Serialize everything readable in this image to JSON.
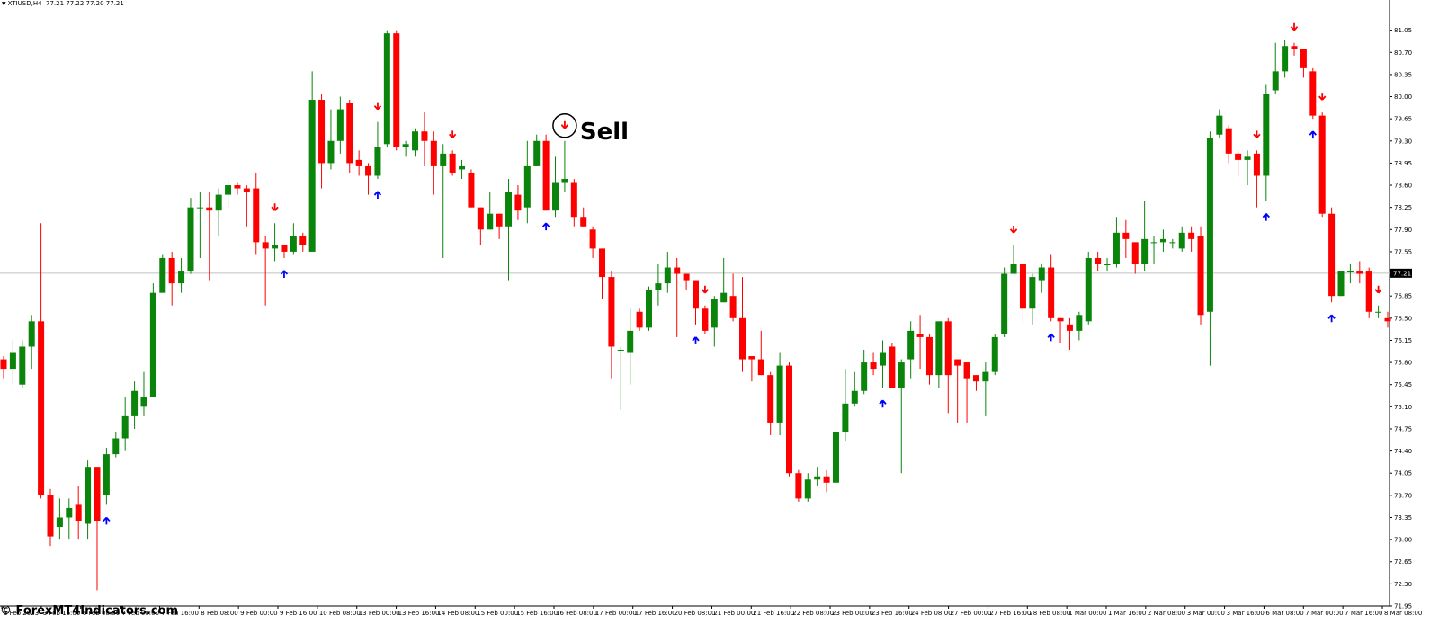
{
  "header": {
    "symbol": "XTIUSD,H4",
    "ohlc": "77.21 77.22 77.20 77.21"
  },
  "watermark": "© ForexMT4Indicators.com",
  "current_price_label": "77.21",
  "sell_label": "Sell",
  "colors": {
    "bull": "#0a840a",
    "bear": "#ff0000",
    "up_arrow": "#0000ff",
    "down_arrow": "#ff0000",
    "price_line": "#c0c0c0"
  },
  "chart_data": {
    "type": "candlestick",
    "ylim": [
      71.95,
      81.4
    ],
    "current_price": 77.21,
    "y_ticks": [
      "81.05",
      "80.70",
      "80.35",
      "80.00",
      "79.65",
      "79.30",
      "78.95",
      "78.60",
      "78.25",
      "77.90",
      "77.55",
      "77.21",
      "76.85",
      "76.50",
      "76.15",
      "75.80",
      "75.45",
      "75.10",
      "74.75",
      "74.40",
      "74.05",
      "73.70",
      "73.35",
      "73.00",
      "72.65",
      "72.30",
      "71.95"
    ],
    "x_labels": [
      "3 Feb 2023",
      "3 Feb 16:00",
      "6 Feb 08:00",
      "7 Feb 00:00",
      "7 Feb 16:00",
      "8 Feb 08:00",
      "9 Feb 00:00",
      "9 Feb 16:00",
      "10 Feb 08:00",
      "13 Feb 00:00",
      "13 Feb 16:00",
      "14 Feb 08:00",
      "15 Feb 00:00",
      "15 Feb 16:00",
      "16 Feb 08:00",
      "17 Feb 00:00",
      "17 Feb 16:00",
      "20 Feb 08:00",
      "21 Feb 00:00",
      "21 Feb 16:00",
      "22 Feb 08:00",
      "23 Feb 00:00",
      "23 Feb 16:00",
      "24 Feb 08:00",
      "27 Feb 00:00",
      "27 Feb 16:00",
      "28 Feb 08:00",
      "1 Mar 00:00",
      "1 Mar 16:00",
      "2 Mar 08:00",
      "3 Mar 00:00",
      "3 Mar 16:00",
      "6 Mar 08:00",
      "7 Mar 00:00",
      "7 Mar 16:00",
      "8 Mar 08:00"
    ],
    "candles": [
      [
        75.85,
        75.7,
        75.9,
        75.55
      ],
      [
        75.7,
        75.95,
        76.15,
        75.45
      ],
      [
        75.45,
        76.05,
        76.15,
        75.4
      ],
      [
        76.05,
        76.45,
        76.55,
        75.7
      ],
      [
        76.45,
        73.7,
        78.0,
        73.65
      ],
      [
        73.7,
        73.05,
        73.8,
        72.9
      ],
      [
        73.2,
        73.35,
        73.65,
        73.0
      ],
      [
        73.35,
        73.5,
        73.65,
        73.0
      ],
      [
        73.55,
        73.3,
        73.85,
        73.0
      ],
      [
        73.25,
        74.15,
        74.25,
        73.0
      ],
      [
        74.15,
        73.3,
        74.15,
        72.2
      ],
      [
        73.7,
        74.35,
        74.45,
        73.55
      ],
      [
        74.35,
        74.6,
        74.7,
        74.3
      ],
      [
        74.6,
        74.95,
        75.25,
        74.4
      ],
      [
        74.95,
        75.35,
        75.5,
        74.75
      ],
      [
        75.1,
        75.25,
        75.65,
        74.95
      ],
      [
        75.25,
        76.9,
        77.05,
        75.25
      ],
      [
        76.9,
        77.45,
        77.5,
        76.95
      ],
      [
        77.45,
        77.05,
        77.55,
        76.7
      ],
      [
        77.05,
        77.25,
        77.45,
        76.9
      ],
      [
        77.25,
        78.25,
        78.4,
        77.2
      ],
      [
        78.25,
        78.25,
        78.5,
        77.45
      ],
      [
        78.25,
        78.2,
        78.5,
        77.1
      ],
      [
        78.2,
        78.45,
        78.55,
        77.8
      ],
      [
        78.45,
        78.6,
        78.7,
        78.25
      ],
      [
        78.6,
        78.55,
        78.65,
        78.45
      ],
      [
        78.55,
        78.5,
        78.6,
        77.95
      ],
      [
        78.55,
        77.7,
        78.8,
        77.5
      ],
      [
        77.7,
        77.6,
        77.8,
        76.7
      ],
      [
        77.6,
        77.65,
        78.0,
        77.4
      ],
      [
        77.65,
        77.55,
        77.65,
        77.45
      ],
      [
        77.55,
        77.8,
        78.0,
        77.5
      ],
      [
        77.8,
        77.65,
        77.85,
        77.55
      ],
      [
        77.55,
        79.95,
        80.4,
        77.55
      ],
      [
        79.95,
        78.95,
        80.05,
        78.55
      ],
      [
        78.95,
        79.3,
        79.8,
        78.85
      ],
      [
        79.3,
        79.8,
        80.0,
        79.1
      ],
      [
        79.9,
        78.95,
        79.95,
        78.8
      ],
      [
        79.0,
        78.9,
        79.15,
        78.75
      ],
      [
        78.9,
        78.75,
        78.95,
        78.45
      ],
      [
        78.75,
        79.2,
        79.6,
        78.7
      ],
      [
        79.25,
        81.0,
        81.05,
        79.2
      ],
      [
        81.0,
        79.2,
        81.05,
        79.15
      ],
      [
        79.2,
        79.25,
        79.3,
        79.05
      ],
      [
        79.15,
        79.45,
        79.5,
        79.05
      ],
      [
        79.45,
        79.3,
        79.75,
        78.9
      ],
      [
        79.3,
        78.9,
        79.45,
        78.45
      ],
      [
        78.9,
        79.1,
        79.25,
        77.45
      ],
      [
        79.1,
        78.8,
        79.15,
        78.75
      ],
      [
        78.85,
        78.9,
        79.0,
        78.7
      ],
      [
        78.8,
        78.25,
        78.85,
        78.25
      ],
      [
        78.25,
        77.9,
        78.25,
        77.65
      ],
      [
        77.9,
        78.15,
        78.5,
        77.9
      ],
      [
        78.15,
        77.95,
        78.15,
        77.75
      ],
      [
        77.95,
        78.5,
        78.7,
        77.1
      ],
      [
        78.45,
        78.2,
        78.6,
        78.05
      ],
      [
        78.25,
        78.9,
        79.3,
        78.0
      ],
      [
        78.9,
        79.3,
        79.4,
        78.9
      ],
      [
        79.3,
        78.2,
        79.4,
        78.2
      ],
      [
        78.2,
        78.65,
        79.05,
        78.1
      ],
      [
        78.65,
        78.7,
        79.3,
        78.5
      ],
      [
        78.65,
        78.1,
        78.7,
        77.95
      ],
      [
        78.1,
        77.95,
        78.25,
        77.95
      ],
      [
        77.9,
        77.6,
        77.95,
        77.45
      ],
      [
        77.6,
        77.15,
        77.6,
        76.8
      ],
      [
        77.15,
        76.05,
        77.25,
        75.55
      ],
      [
        76.0,
        76.0,
        76.05,
        75.05
      ],
      [
        75.95,
        76.3,
        76.65,
        75.45
      ],
      [
        76.6,
        76.35,
        76.65,
        76.3
      ],
      [
        76.35,
        76.95,
        77.0,
        76.3
      ],
      [
        76.95,
        77.05,
        77.35,
        76.7
      ],
      [
        77.05,
        77.3,
        77.55,
        76.9
      ],
      [
        77.3,
        77.2,
        77.45,
        76.2
      ],
      [
        77.2,
        77.1,
        77.2,
        76.95
      ],
      [
        77.1,
        76.65,
        77.1,
        76.4
      ],
      [
        76.65,
        76.3,
        76.7,
        76.25
      ],
      [
        76.35,
        76.8,
        76.85,
        76.05
      ],
      [
        76.75,
        76.9,
        77.45,
        76.75
      ],
      [
        76.85,
        76.5,
        77.2,
        76.45
      ],
      [
        76.5,
        75.85,
        77.15,
        75.65
      ],
      [
        75.9,
        75.85,
        75.9,
        75.5
      ],
      [
        75.85,
        75.6,
        76.3,
        75.6
      ],
      [
        75.6,
        74.85,
        75.65,
        74.65
      ],
      [
        74.85,
        75.75,
        75.95,
        74.65
      ],
      [
        75.75,
        74.05,
        75.8,
        74.0
      ],
      [
        74.05,
        73.65,
        74.1,
        73.6
      ],
      [
        73.65,
        73.95,
        74.05,
        73.6
      ],
      [
        73.95,
        74.0,
        74.15,
        73.85
      ],
      [
        74.0,
        73.9,
        74.1,
        73.75
      ],
      [
        73.9,
        74.7,
        74.75,
        73.85
      ],
      [
        74.7,
        75.15,
        75.7,
        74.55
      ],
      [
        75.15,
        75.35,
        75.65,
        75.1
      ],
      [
        75.35,
        75.8,
        76.0,
        75.3
      ],
      [
        75.8,
        75.7,
        75.95,
        75.6
      ],
      [
        75.75,
        75.95,
        76.15,
        75.4
      ],
      [
        76.05,
        75.4,
        76.1,
        75.4
      ],
      [
        75.4,
        75.8,
        75.85,
        74.05
      ],
      [
        75.85,
        76.3,
        76.45,
        75.55
      ],
      [
        76.25,
        76.2,
        76.55,
        75.7
      ],
      [
        76.2,
        75.6,
        76.25,
        75.45
      ],
      [
        75.6,
        76.45,
        76.45,
        75.4
      ],
      [
        76.45,
        75.6,
        76.5,
        75.0
      ],
      [
        75.85,
        75.75,
        75.85,
        74.85
      ],
      [
        75.8,
        75.55,
        75.8,
        74.85
      ],
      [
        75.6,
        75.5,
        75.6,
        75.35
      ],
      [
        75.5,
        75.65,
        75.8,
        74.95
      ],
      [
        75.65,
        76.2,
        76.25,
        75.6
      ],
      [
        76.25,
        77.2,
        77.3,
        76.2
      ],
      [
        77.2,
        77.35,
        77.65,
        77.2
      ],
      [
        77.35,
        76.65,
        77.4,
        76.4
      ],
      [
        76.65,
        77.15,
        77.2,
        76.4
      ],
      [
        77.1,
        77.3,
        77.35,
        76.9
      ],
      [
        77.3,
        76.5,
        77.5,
        76.45
      ],
      [
        76.5,
        76.45,
        76.5,
        76.1
      ],
      [
        76.4,
        76.3,
        76.5,
        76.0
      ],
      [
        76.3,
        76.55,
        76.6,
        76.15
      ],
      [
        76.45,
        77.45,
        77.55,
        76.4
      ],
      [
        77.45,
        77.35,
        77.55,
        77.25
      ],
      [
        77.35,
        77.35,
        77.45,
        77.25
      ],
      [
        77.35,
        77.85,
        78.1,
        77.3
      ],
      [
        77.85,
        77.75,
        78.05,
        77.45
      ],
      [
        77.7,
        77.35,
        77.7,
        77.2
      ],
      [
        77.35,
        77.75,
        78.35,
        77.25
      ],
      [
        77.7,
        77.7,
        77.8,
        77.35
      ],
      [
        77.7,
        77.75,
        77.9,
        77.55
      ],
      [
        77.7,
        77.7,
        77.75,
        77.6
      ],
      [
        77.6,
        77.85,
        77.95,
        77.55
      ],
      [
        77.85,
        77.75,
        77.95,
        77.55
      ],
      [
        77.8,
        76.55,
        77.95,
        76.4
      ],
      [
        76.6,
        79.35,
        79.45,
        75.75
      ],
      [
        79.4,
        79.7,
        79.8,
        79.35
      ],
      [
        79.5,
        79.1,
        79.55,
        78.95
      ],
      [
        79.1,
        79.0,
        79.15,
        78.75
      ],
      [
        79.0,
        79.05,
        79.15,
        78.6
      ],
      [
        79.1,
        78.75,
        79.15,
        78.25
      ],
      [
        78.75,
        80.05,
        80.2,
        78.35
      ],
      [
        80.1,
        80.4,
        80.85,
        80.05
      ],
      [
        80.4,
        80.8,
        80.9,
        80.3
      ],
      [
        80.8,
        80.75,
        80.85,
        80.65
      ],
      [
        80.75,
        80.45,
        80.75,
        80.3
      ],
      [
        80.4,
        79.7,
        80.45,
        79.65
      ],
      [
        79.7,
        78.15,
        79.75,
        78.1
      ],
      [
        78.15,
        76.85,
        78.25,
        76.75
      ],
      [
        76.85,
        77.25,
        77.25,
        76.85
      ],
      [
        77.25,
        77.25,
        77.35,
        77.05
      ],
      [
        77.25,
        77.2,
        77.4,
        77.05
      ],
      [
        77.25,
        76.6,
        77.3,
        76.5
      ],
      [
        76.6,
        76.6,
        76.7,
        76.5
      ],
      [
        76.5,
        76.45,
        76.6,
        76.35
      ]
    ],
    "buy_arrows": [
      11,
      30,
      40,
      58,
      74,
      94,
      112,
      135,
      140,
      142
    ],
    "sell_arrows": [
      29,
      40,
      48,
      60,
      75,
      108,
      134,
      138,
      141,
      147
    ],
    "sell_highlight_index": 60
  }
}
